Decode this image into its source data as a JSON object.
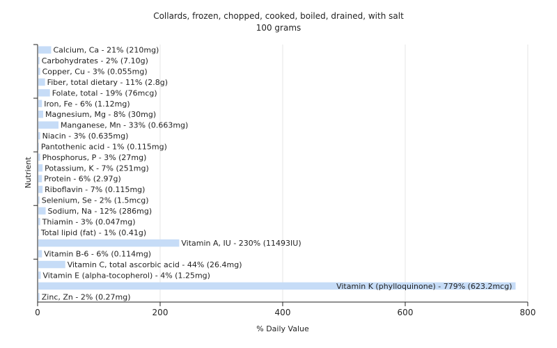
{
  "chart_data": {
    "type": "bar",
    "orientation": "horizontal",
    "title": "Collards, frozen, chopped, cooked, boiled, drained, with salt",
    "subtitle": "100 grams",
    "xlabel": "% Daily Value",
    "ylabel": "Nutrient",
    "xlim": [
      0,
      800
    ],
    "xticks": [
      0,
      200,
      400,
      600,
      800
    ],
    "grid": true,
    "bar_color": "#c6dcf7",
    "categories": [
      "Calcium, Ca - 21% (210mg)",
      "Carbohydrates - 2% (7.10g)",
      "Copper, Cu - 3% (0.055mg)",
      "Fiber, total dietary - 11% (2.8g)",
      "Folate, total - 19% (76mcg)",
      "Iron, Fe - 6% (1.12mg)",
      "Magnesium, Mg - 8% (30mg)",
      "Manganese, Mn - 33% (0.663mg)",
      "Niacin - 3% (0.635mg)",
      "Pantothenic acid - 1% (0.115mg)",
      "Phosphorus, P - 3% (27mg)",
      "Potassium, K - 7% (251mg)",
      "Protein - 6% (2.97g)",
      "Riboflavin - 7% (0.115mg)",
      "Selenium, Se - 2% (1.5mcg)",
      "Sodium, Na - 12% (286mg)",
      "Thiamin - 3% (0.047mg)",
      "Total lipid (fat) - 1% (0.41g)",
      "Vitamin A, IU - 230% (11493IU)",
      "Vitamin B-6 - 6% (0.114mg)",
      "Vitamin C, total ascorbic acid - 44% (26.4mg)",
      "Vitamin E (alpha-tocopherol) - 4% (1.25mg)",
      "Vitamin K (phylloquinone) - 779% (623.2mcg)",
      "Zinc, Zn - 2% (0.27mg)"
    ],
    "values": [
      21,
      2,
      3,
      11,
      19,
      6,
      8,
      33,
      3,
      1,
      3,
      7,
      6,
      7,
      2,
      12,
      3,
      1,
      230,
      6,
      44,
      4,
      779,
      2
    ]
  }
}
